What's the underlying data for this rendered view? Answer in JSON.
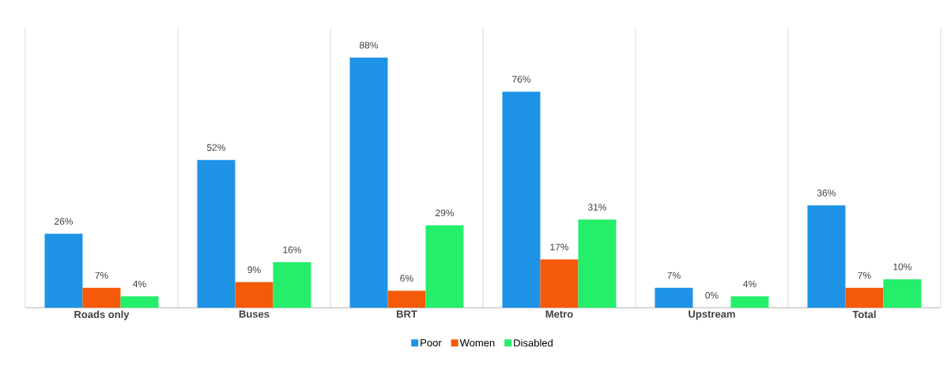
{
  "chart_data": {
    "type": "bar",
    "categories": [
      "Roads only",
      "Buses",
      "BRT",
      "Metro",
      "Upstream",
      "Total"
    ],
    "series": [
      {
        "name": "Poor",
        "color": "#1e93e6",
        "values": [
          26,
          52,
          88,
          76,
          7,
          36
        ],
        "value_labels": [
          "26%",
          "52%",
          "88%",
          "76%",
          "7%",
          "36%"
        ]
      },
      {
        "name": "Women",
        "color": "#f55a0a",
        "values": [
          7,
          9,
          6,
          17,
          0,
          7
        ],
        "value_labels": [
          "7%",
          "9%",
          "6%",
          "17%",
          "0%",
          "7%"
        ]
      },
      {
        "name": "Disabled",
        "color": "#24ee6a",
        "values": [
          4,
          16,
          29,
          31,
          4,
          10
        ],
        "value_labels": [
          "4%",
          "16%",
          "29%",
          "31%",
          "4%",
          "10%"
        ]
      }
    ],
    "grid": "x",
    "legend": "bottom"
  }
}
